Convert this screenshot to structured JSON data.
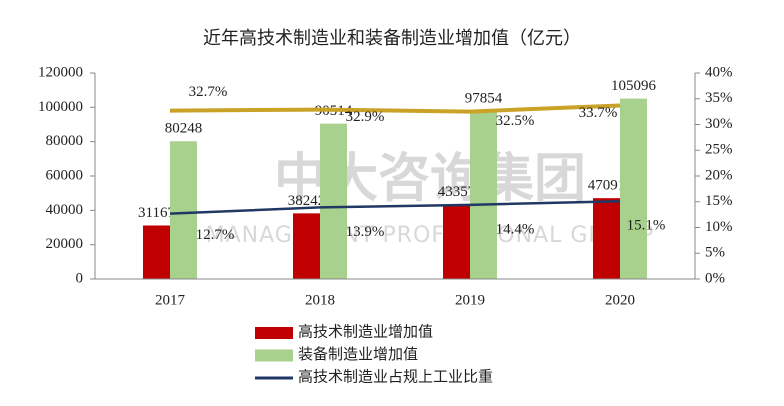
{
  "chart_data": {
    "type": "bar",
    "title": "近年高技术制造业和装备制造业增加值（亿元）",
    "watermark": [
      "中大咨询集团",
      "MANAGEMENT PROFESSIONAL GROUP"
    ],
    "categories": [
      "2017",
      "2018",
      "2019",
      "2020"
    ],
    "series": [
      {
        "name": "高技术制造业增加值",
        "type": "bar",
        "color": "#c00000",
        "values": [
          31167,
          38242,
          43357,
          47091
        ]
      },
      {
        "name": "装备制造业增加值",
        "type": "bar",
        "color": "#a9d18e",
        "values": [
          80248,
          90514,
          97854,
          105096
        ]
      },
      {
        "name": "高技术制造业占规上工业比重",
        "type": "line",
        "axis": "y2",
        "color": "#1f3864",
        "values": [
          12.7,
          13.9,
          14.4,
          15.1
        ],
        "value_labels": [
          "12.7%",
          "13.9%",
          "14.4%",
          "15.1%"
        ]
      },
      {
        "type": "line",
        "axis": "y2",
        "color": "#c9a227",
        "values": [
          32.7,
          32.9,
          32.5,
          33.7
        ],
        "value_labels": [
          "32.7%",
          "32.9%",
          "32.5%",
          "33.7%"
        ]
      }
    ],
    "ylim": [
      0,
      120000
    ],
    "yticks": [
      0,
      20000,
      40000,
      60000,
      80000,
      100000,
      120000
    ],
    "y2lim": [
      0,
      40
    ],
    "y2ticks": [
      {
        "value": 0,
        "label": "0%"
      },
      {
        "value": 5,
        "label": "5%"
      },
      {
        "value": 10,
        "label": "10%"
      },
      {
        "value": 15,
        "label": "15%"
      },
      {
        "value": 20,
        "label": "20%"
      },
      {
        "value": 25,
        "label": "25%"
      },
      {
        "value": 30,
        "label": "30%"
      },
      {
        "value": 35,
        "label": "35%"
      },
      {
        "value": 40,
        "label": "40%"
      }
    ]
  }
}
